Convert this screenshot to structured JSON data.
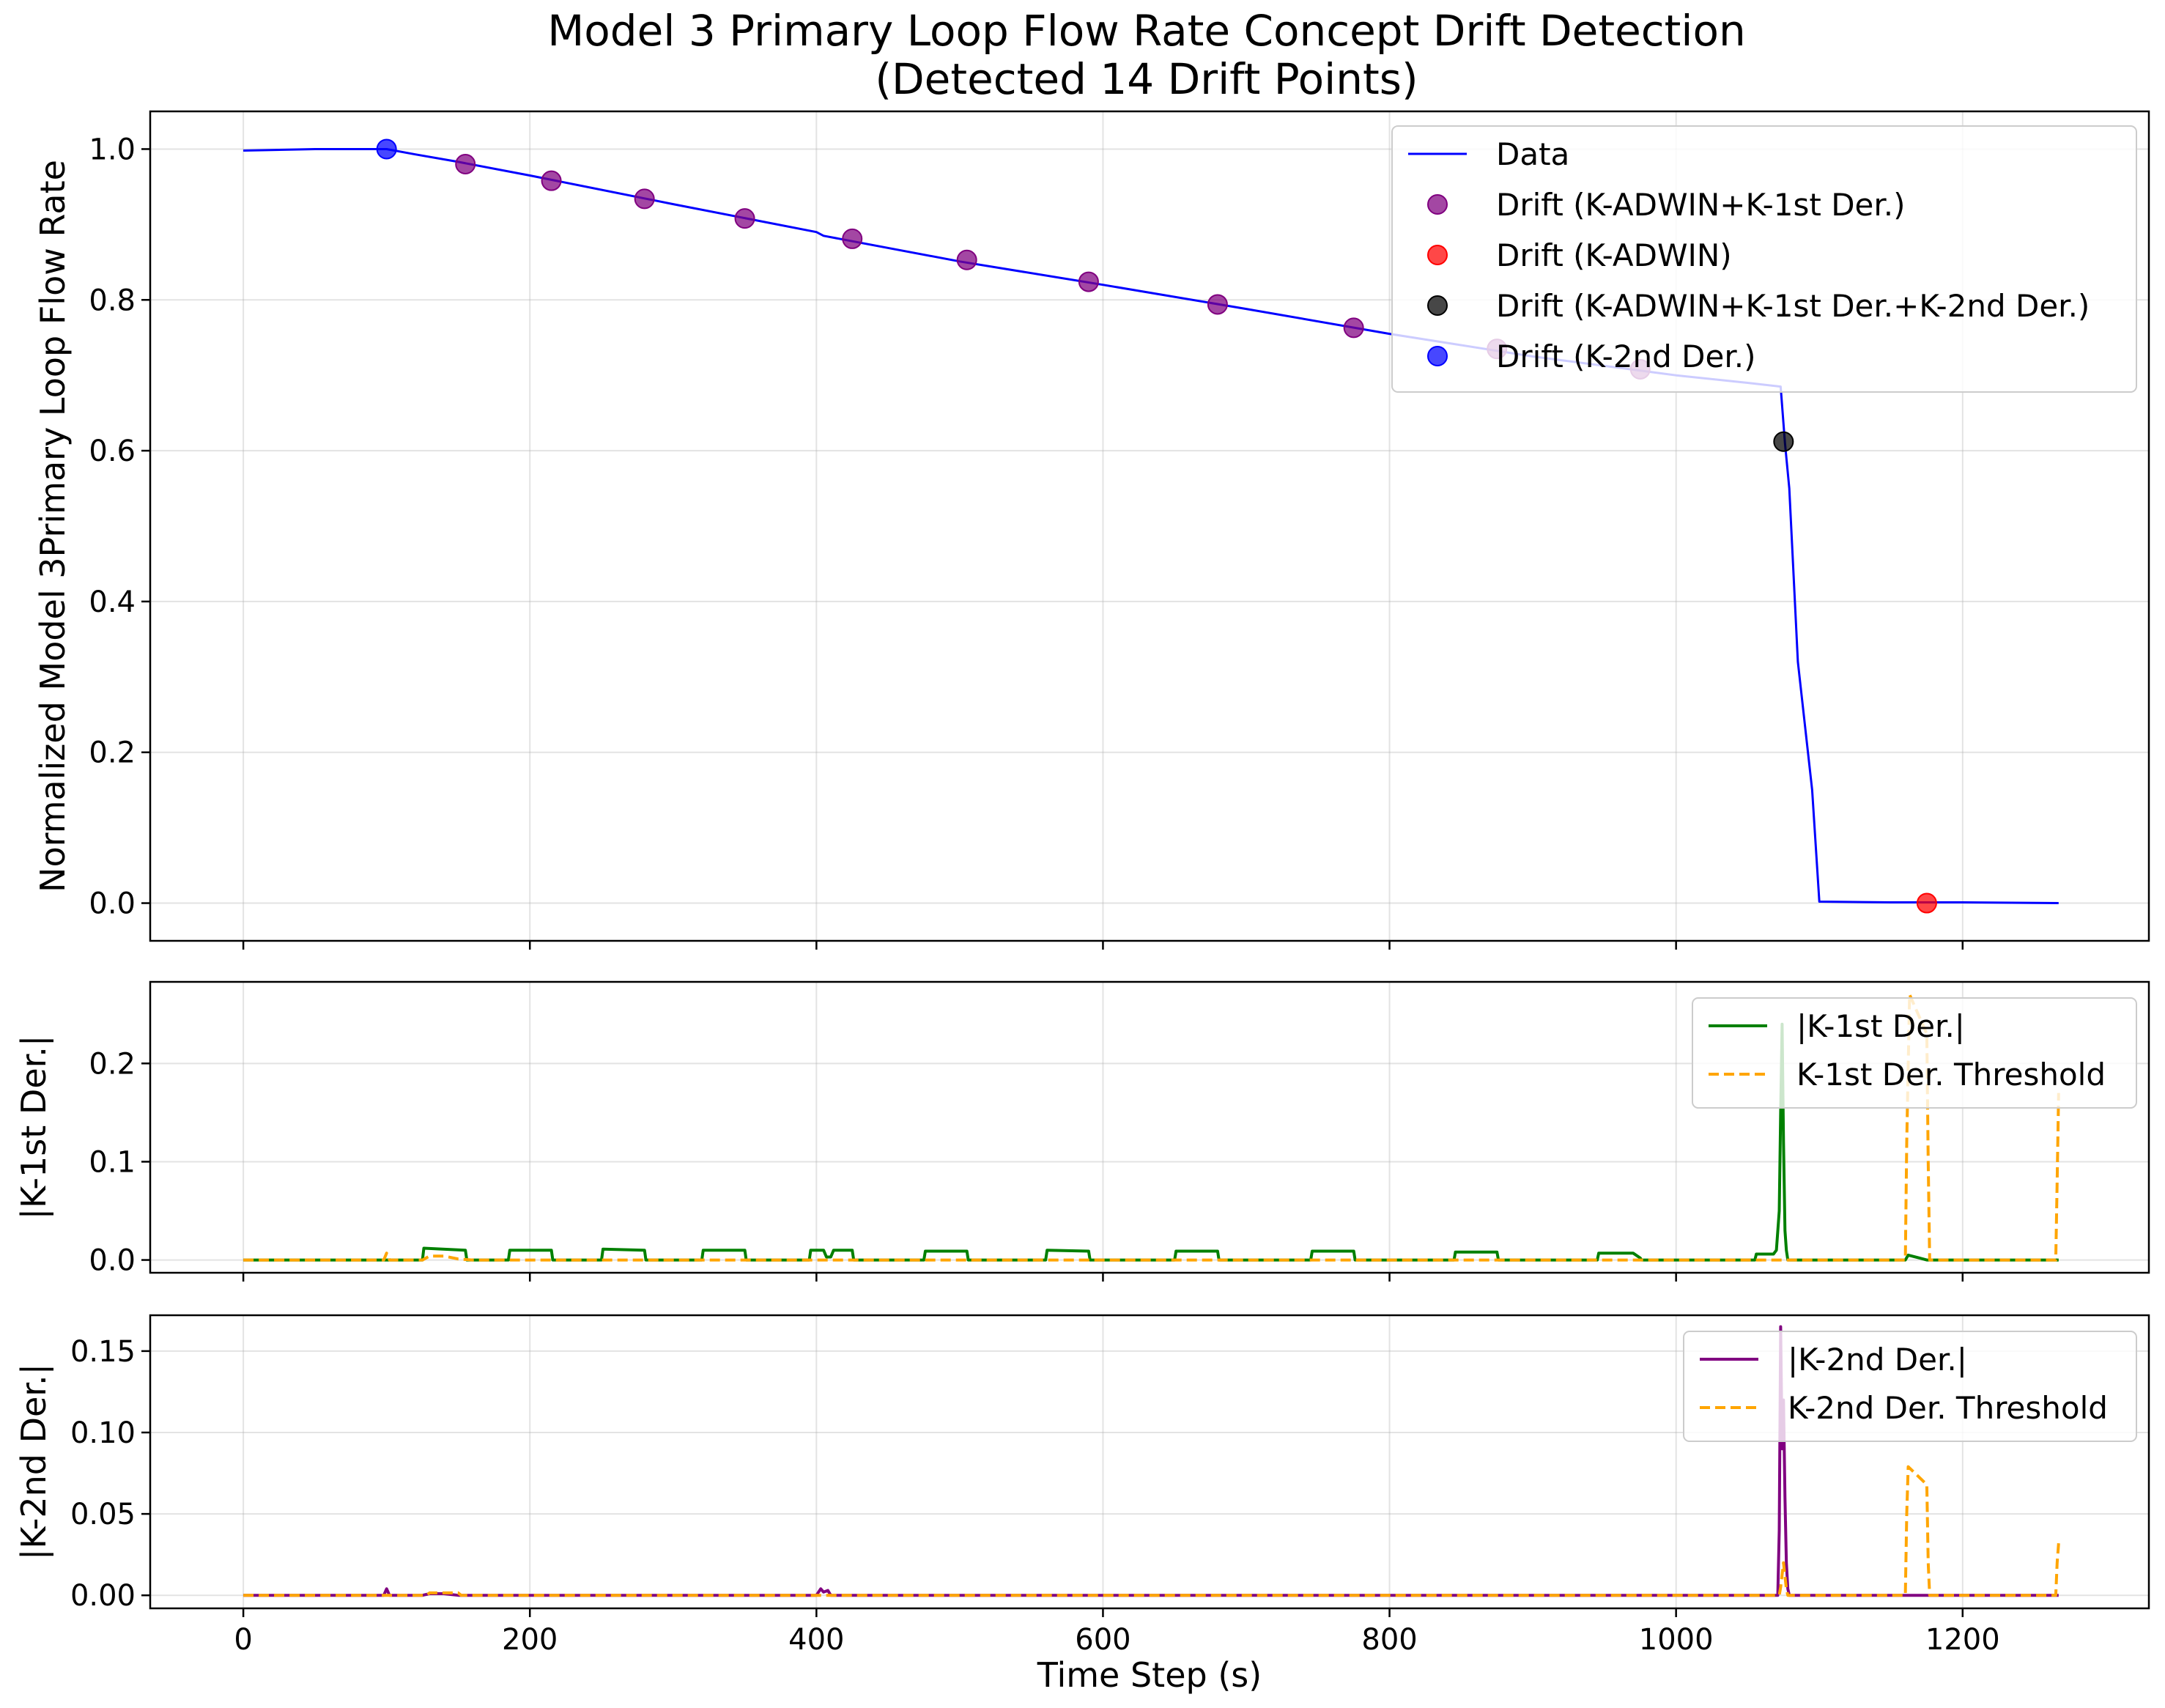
{
  "chart_data": {
    "title": "Model 3 Primary Loop Flow Rate Concept Drift Detection\n(Detected 14 Drift Points)",
    "xlabel": "Time Step (s)",
    "xlim": [
      -65,
      1330
    ],
    "xticks": [
      0,
      200,
      400,
      600,
      800,
      1000,
      1200
    ],
    "grid": true,
    "panels": [
      {
        "type": "line",
        "ylabel": "Normalized Model 3Primary Loop Flow Rate",
        "ylim": [
          -0.05,
          1.05
        ],
        "yticks": [
          0.0,
          0.2,
          0.4,
          0.6,
          0.8,
          1.0
        ],
        "ytick_labels": [
          "0.0",
          "0.2",
          "0.4",
          "0.6",
          "0.8",
          "1.0"
        ],
        "legend_position": "upper right",
        "series": [
          {
            "name": "Data",
            "kind": "line",
            "color": "#0000ff",
            "x": [
              0,
              50,
              100,
              120,
              150,
              200,
              300,
              400,
              405,
              500,
              600,
              700,
              800,
              900,
              1000,
              1050,
              1073,
              1076,
              1079,
              1085,
              1095,
              1100,
              1150,
              1200,
              1267
            ],
            "y": [
              0.998,
              1.0,
              1.0,
              0.993,
              0.983,
              0.965,
              0.927,
              0.89,
              0.885,
              0.851,
              0.82,
              0.788,
              0.755,
              0.725,
              0.7,
              0.69,
              0.685,
              0.61,
              0.55,
              0.32,
              0.15,
              0.002,
              0.001,
              0.001,
              0.0
            ]
          },
          {
            "name": "Drift (K-ADWIN+K-1st Der.)",
            "kind": "scatter",
            "color": "#800080",
            "x": [
              155,
              215,
              280,
              350,
              425,
              505,
              590,
              680,
              775,
              875,
              975
            ],
            "y": [
              0.98,
              0.958,
              0.934,
              0.908,
              0.881,
              0.853,
              0.824,
              0.794,
              0.763,
              0.735,
              0.708
            ]
          },
          {
            "name": "Drift (K-ADWIN)",
            "kind": "scatter",
            "color": "#ff0000",
            "x": [
              1175
            ],
            "y": [
              0.0
            ]
          },
          {
            "name": "Drift (K-ADWIN+K-1st Der.+K-2nd Der.)",
            "kind": "scatter",
            "color": "#000000",
            "x": [
              1075
            ],
            "y": [
              0.612
            ]
          },
          {
            "name": "Drift (K-2nd Der.)",
            "kind": "scatter",
            "color": "#0000ff",
            "x": [
              100
            ],
            "y": [
              1.0
            ]
          }
        ]
      },
      {
        "type": "line",
        "ylabel": "|K-1st Der.|",
        "ylim": [
          -0.013,
          0.283
        ],
        "yticks": [
          0.0,
          0.1,
          0.2
        ],
        "ytick_labels": [
          "0.0",
          "0.1",
          "0.2"
        ],
        "legend_position": "upper right",
        "series": [
          {
            "name": "|K-1st Der.|",
            "kind": "line",
            "color": "#008000",
            "x": [
              0,
              125,
              126,
              155,
              156,
              185,
              186,
              215,
              216,
              250,
              251,
              280,
              281,
              320,
              321,
              350,
              351,
              395,
              396,
              405,
              407,
              410,
              412,
              425,
              426,
              475,
              476,
              505,
              506,
              560,
              561,
              590,
              591,
              650,
              651,
              680,
              681,
              745,
              746,
              775,
              776,
              845,
              846,
              875,
              876,
              945,
              946,
              970,
              975,
              976,
              1055,
              1056,
              1068,
              1070,
              1072,
              1073,
              1074,
              1075,
              1076,
              1077,
              1078,
              1160,
              1162,
              1170,
              1175,
              1267
            ],
            "y": [
              0,
              0,
              0.012,
              0.01,
              0,
              0,
              0.01,
              0.01,
              0,
              0,
              0.011,
              0.01,
              0,
              0,
              0.01,
              0.01,
              0,
              0,
              0.01,
              0.01,
              0.003,
              0.003,
              0.01,
              0.01,
              0,
              0,
              0.009,
              0.009,
              0,
              0,
              0.01,
              0.009,
              0,
              0,
              0.009,
              0.009,
              0,
              0,
              0.009,
              0.009,
              0,
              0,
              0.008,
              0.008,
              0,
              0,
              0.007,
              0.007,
              0.002,
              0,
              0,
              0.006,
              0.006,
              0.01,
              0.05,
              0.15,
              0.24,
              0.12,
              0.03,
              0.01,
              0,
              0,
              0.005,
              0.002,
              0,
              0
            ]
          },
          {
            "name": "K-1st Der. Threshold",
            "kind": "line",
            "style": "dashed",
            "color": "#ffa500",
            "x": [
              0,
              98,
              100,
              102,
              125,
              130,
              140,
              150,
              160,
              1160,
              1161,
              1163,
              1175,
              1176,
              1177,
              1265,
              1266,
              1267
            ],
            "y": [
              0,
              0,
              0.007,
              0,
              0,
              0.004,
              0.004,
              0.001,
              0,
              0,
              0.12,
              0.27,
              0.23,
              0.1,
              0,
              0,
              0.08,
              0.17
            ]
          }
        ]
      },
      {
        "type": "line",
        "ylabel": "|K-2nd Der.|",
        "ylim": [
          -0.008,
          0.172
        ],
        "yticks": [
          0.0,
          0.05,
          0.1,
          0.15
        ],
        "ytick_labels": [
          "0.00",
          "0.05",
          "0.10",
          "0.15"
        ],
        "legend_position": "upper right",
        "series": [
          {
            "name": "|K-2nd Der.|",
            "kind": "line",
            "color": "#800080",
            "x": [
              0,
              98,
              100,
              102,
              125,
              130,
              140,
              150,
              400,
              403,
              405,
              408,
              410,
              1071,
              1072,
              1073,
              1074,
              1075,
              1076,
              1077,
              1078,
              1079,
              1267
            ],
            "y": [
              0,
              0,
              0.004,
              0,
              0,
              0.001,
              0.001,
              0,
              0,
              0.004,
              0.002,
              0.003,
              0,
              0,
              0.04,
              0.165,
              0.09,
              0.12,
              0.06,
              0.02,
              0.004,
              0,
              0
            ]
          },
          {
            "name": "K-2nd Der. Threshold",
            "kind": "line",
            "style": "dashed",
            "color": "#ffa500",
            "x": [
              0,
              128,
              130,
              150,
              152,
              1072,
              1073,
              1075,
              1077,
              1078,
              1160,
              1161,
              1162,
              1175,
              1176,
              1177,
              1265,
              1266,
              1267
            ],
            "y": [
              0,
              0,
              0.0015,
              0.0015,
              0,
              0,
              0.005,
              0.02,
              0.004,
              0,
              0,
              0.05,
              0.079,
              0.068,
              0.02,
              0,
              0,
              0.02,
              0.032
            ]
          }
        ]
      }
    ]
  }
}
